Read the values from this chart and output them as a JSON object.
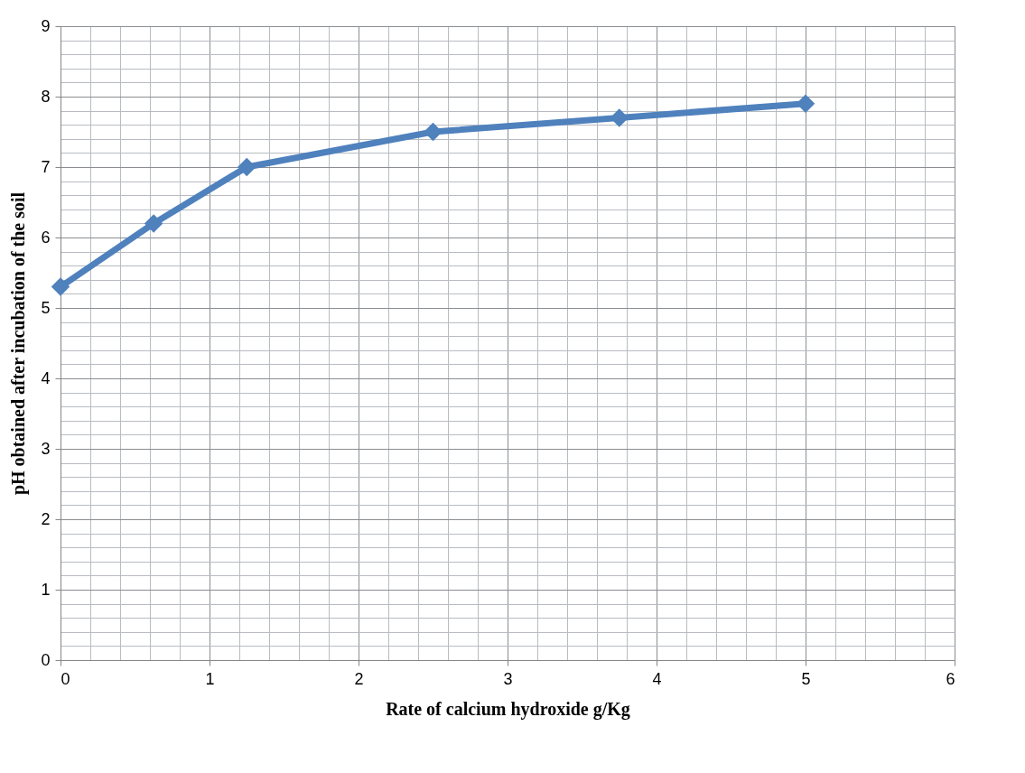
{
  "chart_data": {
    "type": "line",
    "xlabel": "Rate of calcium hydroxide g/Kg",
    "ylabel": "pH  obtained after incubation of the soil",
    "x": [
      0,
      0.625,
      1.25,
      2.5,
      3.75,
      5
    ],
    "series": [
      {
        "color": "#4f81bd",
        "values": [
          5.3,
          6.2,
          7.0,
          7.5,
          7.7,
          7.9
        ]
      }
    ],
    "xlim": [
      0,
      6
    ],
    "ylim": [
      0,
      9
    ],
    "xticks": [
      0,
      {
        "value": 0.2,
        "label": null
      },
      {
        "value": 0.4,
        "label": null
      },
      {
        "value": 0.6,
        "label": null
      },
      {
        "value": 0.8,
        "label": null
      },
      1,
      {
        "value": 1.2,
        "label": null
      },
      {
        "value": 1.4,
        "label": null
      },
      {
        "value": 1.6,
        "label": null
      },
      {
        "value": 1.8,
        "label": null
      },
      2,
      {
        "value": 2.2,
        "label": null
      },
      {
        "value": 2.4,
        "label": null
      },
      {
        "value": 2.6,
        "label": null
      },
      {
        "value": 2.8,
        "label": null
      },
      3,
      {
        "value": 3.2,
        "label": null
      },
      {
        "value": 3.4,
        "label": null
      },
      {
        "value": 3.6,
        "label": null
      },
      {
        "value": 3.8,
        "label": null
      },
      4,
      {
        "value": 4.2,
        "label": null
      },
      {
        "value": 4.4,
        "label": null
      },
      {
        "value": 4.6,
        "label": null
      },
      {
        "value": 4.8,
        "label": null
      },
      5,
      {
        "value": 5.2,
        "label": null
      },
      {
        "value": 5.4,
        "label": null
      },
      {
        "value": 5.6,
        "label": null
      },
      {
        "value": 5.8,
        "label": null
      },
      6
    ],
    "yticks": [
      0,
      {
        "value": 0.2,
        "label": null
      },
      {
        "value": 0.4,
        "label": null
      },
      {
        "value": 0.6,
        "label": null
      },
      {
        "value": 0.8,
        "label": null
      },
      1,
      {
        "value": 1.2,
        "label": null
      },
      {
        "value": 1.4,
        "label": null
      },
      {
        "value": 1.6,
        "label": null
      },
      {
        "value": 1.8,
        "label": null
      },
      2,
      {
        "value": 2.2,
        "label": null
      },
      {
        "value": 2.4,
        "label": null
      },
      {
        "value": 2.6,
        "label": null
      },
      {
        "value": 2.8,
        "label": null
      },
      3,
      {
        "value": 3.2,
        "label": null
      },
      {
        "value": 3.4,
        "label": null
      },
      {
        "value": 3.6,
        "label": null
      },
      {
        "value": 3.8,
        "label": null
      },
      4,
      {
        "value": 4.2,
        "label": null
      },
      {
        "value": 4.4,
        "label": null
      },
      {
        "value": 4.6,
        "label": null
      },
      {
        "value": 4.8,
        "label": null
      },
      5,
      {
        "value": 5.2,
        "label": null
      },
      {
        "value": 5.4,
        "label": null
      },
      {
        "value": 5.6,
        "label": null
      },
      {
        "value": 5.8,
        "label": null
      },
      6,
      {
        "value": 6.2,
        "label": null
      },
      {
        "value": 6.4,
        "label": null
      },
      {
        "value": 6.6,
        "label": null
      },
      {
        "value": 6.8,
        "label": null
      },
      7,
      {
        "value": 7.2,
        "label": null
      },
      {
        "value": 7.4,
        "label": null
      },
      {
        "value": 7.6,
        "label": null
      },
      {
        "value": 7.8,
        "label": null
      },
      8,
      {
        "value": 8.2,
        "label": null
      },
      {
        "value": 8.4,
        "label": null
      },
      {
        "value": 8.6,
        "label": null
      },
      {
        "value": 8.8,
        "label": null
      },
      9
    ],
    "grid": true,
    "marker": "diamond",
    "line_style": "solid"
  }
}
